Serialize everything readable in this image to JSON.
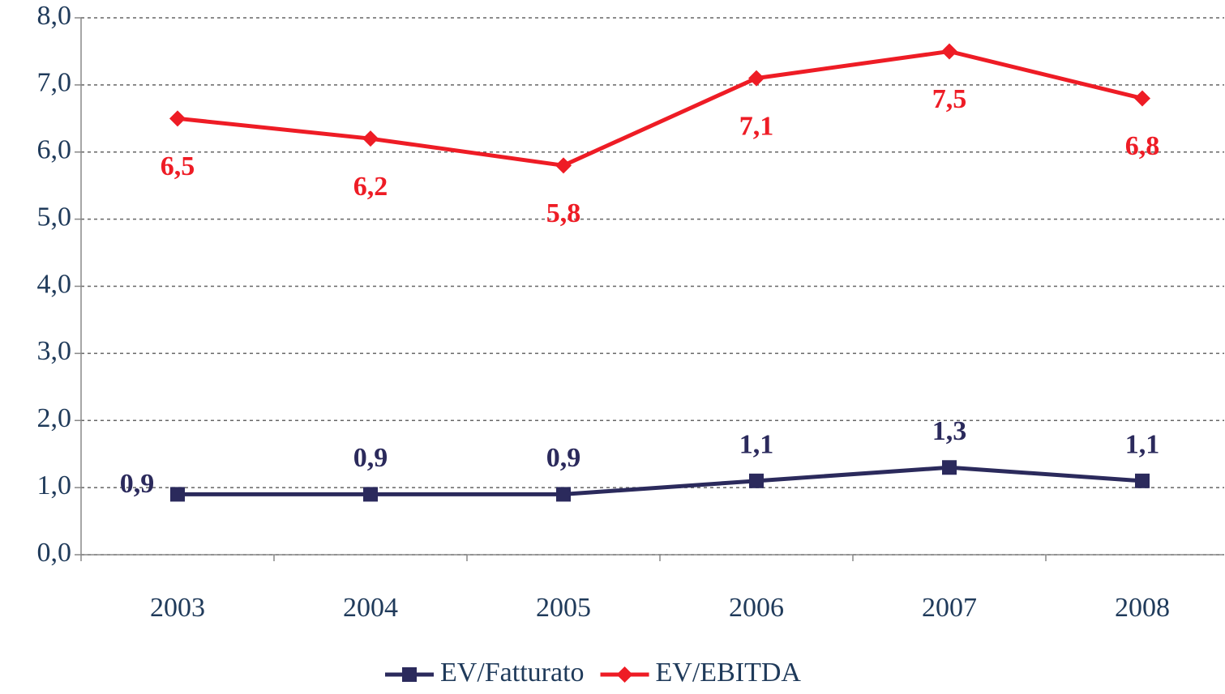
{
  "chart_data": {
    "type": "line",
    "categories": [
      "2003",
      "2004",
      "2005",
      "2006",
      "2007",
      "2008"
    ],
    "series": [
      {
        "name": "EV/Fatturato",
        "color": "#2b2a5c",
        "marker": "square",
        "values": [
          0.9,
          0.9,
          0.9,
          1.1,
          1.3,
          1.1
        ],
        "value_labels": [
          "0,9",
          "0,9",
          "0,9",
          "1,1",
          "1,3",
          "1,1"
        ]
      },
      {
        "name": "EV/EBITDA",
        "color": "#ee1c25",
        "marker": "diamond",
        "values": [
          6.5,
          6.2,
          5.8,
          7.1,
          7.5,
          6.8
        ],
        "value_labels": [
          "6,5",
          "6,2",
          "5,8",
          "7,1",
          "7,5",
          "6,8"
        ]
      }
    ],
    "ylim": [
      0,
      8
    ],
    "yticks": [
      {
        "value": 0,
        "label": "0,0"
      },
      {
        "value": 1,
        "label": "1,0"
      },
      {
        "value": 2,
        "label": "2,0"
      },
      {
        "value": 3,
        "label": "3,0"
      },
      {
        "value": 4,
        "label": "4,0"
      },
      {
        "value": 5,
        "label": "5,0"
      },
      {
        "value": 6,
        "label": "6,0"
      },
      {
        "value": 7,
        "label": "7,0"
      },
      {
        "value": 8,
        "label": "8,0"
      }
    ],
    "grid": true,
    "legend": "bottom"
  }
}
